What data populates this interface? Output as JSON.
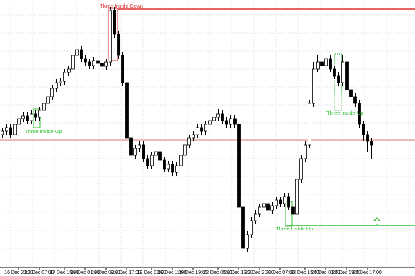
{
  "chart_data": {
    "type": "candlestick",
    "categories": [
      null,
      null,
      null,
      null,
      "16 Dec 21:00",
      null,
      null,
      null,
      null,
      "17 Dec 07:00",
      null,
      null,
      null,
      null,
      null,
      "17 Dec 15:00",
      null,
      null,
      null,
      null,
      "18 Dec 01:00",
      null,
      null,
      null,
      null,
      "18 Dec 09:00",
      null,
      null,
      null,
      null,
      "18 Dec 17:00",
      null,
      null,
      null,
      null,
      null,
      "19 Dec 03:00",
      null,
      null,
      null,
      null,
      "19 Dec 11:00",
      null,
      null,
      null,
      null,
      "19 Dec 19:00",
      null,
      null,
      null,
      null,
      null,
      "22 Dec 05:00",
      null,
      null,
      null,
      null,
      "22 Dec 13:00",
      null,
      null,
      null,
      null,
      "22 Dec 21:00",
      null,
      null,
      null,
      null,
      "23 Dec 07:00",
      null,
      null,
      null,
      null,
      null,
      "23 Dec 15:00",
      null,
      null,
      null,
      null,
      "24 Dec 01:00",
      null,
      null,
      null,
      null,
      "24 Dec 09:00",
      null,
      null,
      null,
      null,
      "24 Dec 17:00",
      null
    ],
    "open": [
      205,
      210,
      215,
      205,
      220,
      228,
      232,
      225,
      235,
      230,
      240,
      250,
      260,
      272,
      280,
      282,
      295,
      300,
      320,
      328,
      315,
      310,
      305,
      312,
      308,
      304,
      310,
      385,
      350,
      320,
      280,
      200,
      175,
      185,
      190,
      170,
      160,
      175,
      180,
      168,
      155,
      162,
      150,
      160,
      175,
      190,
      200,
      205,
      215,
      210,
      220,
      225,
      230,
      235,
      225,
      220,
      228,
      220,
      100,
      40,
      60,
      80,
      90,
      100,
      105,
      95,
      102,
      110,
      105,
      115,
      100,
      90,
      140,
      170,
      190,
      250,
      300,
      310,
      305,
      315,
      300,
      290,
      280,
      310,
      270,
      260,
      250,
      220,
      205,
      195
    ],
    "high": [
      215,
      220,
      220,
      225,
      233,
      237,
      237,
      240,
      240,
      245,
      255,
      265,
      277,
      285,
      287,
      300,
      305,
      325,
      333,
      333,
      320,
      315,
      317,
      317,
      313,
      315,
      390,
      390,
      355,
      325,
      285,
      205,
      190,
      195,
      195,
      175,
      180,
      185,
      185,
      173,
      167,
      167,
      165,
      180,
      195,
      205,
      210,
      220,
      220,
      225,
      230,
      235,
      242,
      240,
      230,
      233,
      233,
      225,
      105,
      65,
      85,
      95,
      105,
      115,
      110,
      107,
      115,
      115,
      120,
      120,
      105,
      145,
      175,
      195,
      255,
      310,
      320,
      315,
      320,
      320,
      305,
      295,
      320,
      315,
      275,
      265,
      255,
      225,
      210,
      200
    ],
    "low": [
      200,
      205,
      200,
      200,
      215,
      223,
      220,
      220,
      225,
      225,
      235,
      245,
      255,
      267,
      275,
      277,
      290,
      295,
      315,
      310,
      305,
      300,
      300,
      303,
      299,
      299,
      305,
      345,
      315,
      275,
      195,
      170,
      170,
      180,
      165,
      155,
      155,
      170,
      163,
      150,
      150,
      145,
      145,
      155,
      170,
      185,
      195,
      200,
      205,
      205,
      215,
      220,
      225,
      220,
      215,
      215,
      215,
      95,
      22,
      35,
      55,
      75,
      85,
      95,
      90,
      90,
      97,
      100,
      100,
      95,
      85,
      85,
      135,
      165,
      185,
      245,
      295,
      300,
      300,
      295,
      285,
      275,
      275,
      265,
      255,
      245,
      215,
      195,
      180,
      170
    ],
    "close": [
      210,
      215,
      205,
      220,
      228,
      232,
      225,
      235,
      230,
      240,
      250,
      260,
      272,
      280,
      282,
      295,
      300,
      320,
      328,
      315,
      310,
      305,
      312,
      308,
      304,
      310,
      385,
      350,
      320,
      280,
      200,
      175,
      185,
      190,
      170,
      160,
      175,
      180,
      168,
      155,
      162,
      150,
      160,
      175,
      190,
      200,
      205,
      215,
      210,
      220,
      225,
      230,
      235,
      225,
      220,
      228,
      220,
      100,
      40,
      60,
      80,
      90,
      100,
      105,
      95,
      102,
      110,
      105,
      115,
      100,
      90,
      140,
      170,
      190,
      250,
      300,
      310,
      305,
      315,
      300,
      290,
      280,
      310,
      270,
      260,
      250,
      220,
      205,
      195,
      190
    ],
    "up_color": "#ffffff",
    "down_color": "#000000",
    "ylim": [
      12,
      400
    ],
    "grid": true,
    "annotations": [
      {
        "label": "Three Inside Down",
        "color": "#e03030"
      },
      {
        "label": "Three Inside Up",
        "color": "#30c030"
      },
      {
        "label": "Three Inside Up",
        "color": "#30c030"
      },
      {
        "label": "Three Inside Up",
        "color": "#30c030"
      }
    ]
  }
}
